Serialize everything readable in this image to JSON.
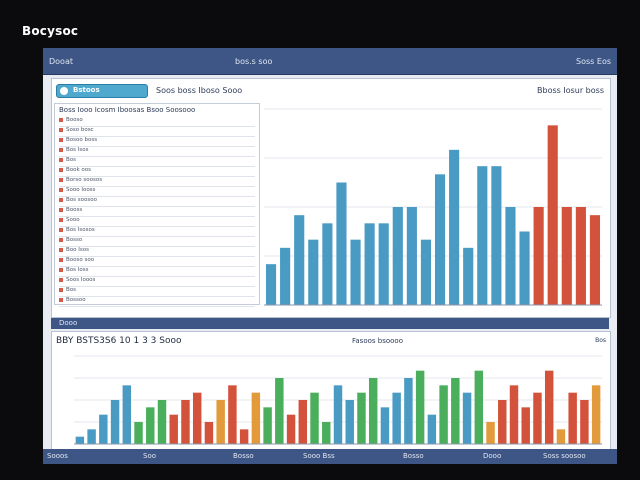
{
  "app": {
    "title": "Bocysoc"
  },
  "window": {
    "header": {
      "left": "Dooat",
      "mid": "bos.s soo",
      "right": "Soss  Eos"
    },
    "toolbar": {
      "search_label": "Bstoos",
      "text1": "Soos  boss  Iboso  Sooo",
      "right_text": "Bboss  Iosur boss"
    },
    "table": {
      "header": "Boss  Iooo  Icosm Iboosas  Bsoo  Soosooo",
      "rows": [
        "Booso",
        "Soso bosc",
        "Bosoo boss",
        "Bos Isos",
        "Bos",
        "Book oos",
        "Borso soosos",
        "Sooo Iooss",
        "Bos soosoo",
        "Booss",
        "Sooo",
        "Bos Isosos",
        "Bosso",
        "Boo Isos",
        "Booso soo",
        "Bos Ioss",
        "Soos Iooos",
        "Bos",
        "Bossoo"
      ]
    },
    "section_bar": {
      "label": "Dooo"
    },
    "bottom": {
      "title": "BBY BSTS3S6 10  1 3 3  Sooo",
      "legend": "Fasoos bsoooo",
      "right": "Bos"
    },
    "status": {
      "items": [
        "Sooos",
        "Soo",
        "Bosso",
        "Sooo Bss",
        "Bosso",
        "Dooo",
        "Soss soosoo"
      ]
    }
  },
  "colors": {
    "header": "#3e5685",
    "blue": "#4a9bc4",
    "red": "#d3523b",
    "green": "#4aae5c",
    "orange": "#e29a3a"
  },
  "chart_data": [
    {
      "type": "bar",
      "values": [
        5,
        7,
        11,
        8,
        10,
        15,
        8,
        10,
        10,
        12,
        12,
        8,
        16,
        19,
        7,
        17,
        17,
        12,
        9,
        12,
        22,
        12,
        12,
        11
      ],
      "colors": [
        "blue",
        "blue",
        "blue",
        "blue",
        "blue",
        "blue",
        "blue",
        "blue",
        "blue",
        "blue",
        "blue",
        "blue",
        "blue",
        "blue",
        "blue",
        "blue",
        "blue",
        "blue",
        "blue",
        "red",
        "red",
        "red",
        "red",
        "red"
      ],
      "ylim": [
        0,
        24
      ]
    },
    {
      "type": "bar",
      "values": [
        1,
        2,
        4,
        6,
        8,
        3,
        5,
        6,
        4,
        6,
        7,
        3,
        6,
        8,
        2,
        7,
        5,
        9,
        4,
        6,
        7,
        3,
        8,
        6,
        7,
        9,
        5,
        7,
        9,
        10,
        4,
        8,
        9,
        7,
        10,
        3,
        6,
        8,
        5,
        7,
        10,
        2,
        7,
        6,
        8
      ],
      "colors": [
        "blue",
        "blue",
        "blue",
        "blue",
        "blue",
        "green",
        "green",
        "green",
        "red",
        "red",
        "red",
        "red",
        "orange",
        "red",
        "red",
        "orange",
        "green",
        "green",
        "red",
        "red",
        "green",
        "green",
        "blue",
        "blue",
        "green",
        "green",
        "blue",
        "blue",
        "blue",
        "green",
        "blue",
        "green",
        "green",
        "blue",
        "green",
        "orange",
        "red",
        "red",
        "red",
        "red",
        "red",
        "orange",
        "red",
        "red",
        "orange"
      ],
      "ylim": [
        0,
        12
      ]
    }
  ]
}
